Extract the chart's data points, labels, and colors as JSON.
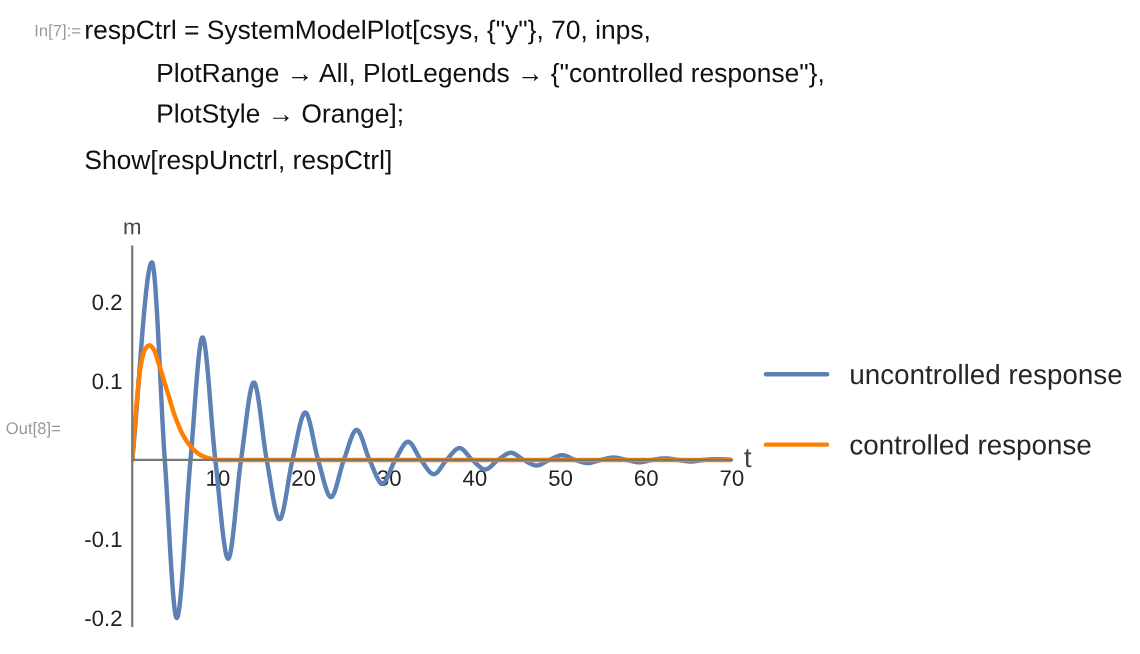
{
  "chart_data": {
    "type": "line",
    "xlabel": "t",
    "ylabel": "m",
    "annotations": [
      "In[7]:=",
      "respCtrl = SystemModelPlot[csys, {\"y\"}, 70, inps,",
      "PlotRange → All, PlotLegends → {\"controlled response\"},",
      "PlotStyle → Orange];",
      "Show[respUnctrl, respCtrl]",
      "Out[8]="
    ],
    "series": [
      {
        "name": "uncontrolled response",
        "color": "#5e81b5",
        "x": [
          0,
          2.3,
          3.8,
          5.2,
          6.8,
          8.2,
          9.7,
          11.2,
          12.7,
          14.2,
          15.7,
          17.2,
          18.7,
          20.2,
          21.7,
          23.2,
          24.7,
          26.2,
          27.7,
          29.2,
          30.7,
          32.2,
          33.7,
          35.2,
          36.7,
          38.2,
          39.7,
          41.2,
          42.7,
          44.2,
          45.7,
          47.2,
          48.7,
          50.2,
          51.7,
          53.2,
          54.7,
          56.2,
          57.7,
          59.2,
          60.7,
          62.2,
          63.7,
          65.2,
          66.7,
          68.2,
          70
        ],
        "values": [
          0,
          0.25,
          0,
          -0.2,
          0,
          0.155,
          0,
          -0.125,
          0,
          0.098,
          0,
          -0.075,
          0,
          0.06,
          0,
          -0.047,
          0,
          0.038,
          0,
          -0.03,
          0,
          0.023,
          0,
          -0.018,
          0,
          0.015,
          0,
          -0.012,
          0,
          0.009,
          0,
          -0.007,
          0,
          0.006,
          0,
          -0.004,
          0,
          0.003,
          0,
          -0.003,
          0,
          0.002,
          0,
          -0.002,
          0,
          0.001,
          0
        ]
      },
      {
        "name": "controlled response",
        "color": "#ff8000",
        "x": [
          0,
          0.5,
          1,
          1.5,
          2,
          2.5,
          3,
          4,
          5,
          6,
          7,
          8,
          9,
          10,
          70
        ],
        "values": [
          0,
          0.07,
          0.12,
          0.14,
          0.145,
          0.14,
          0.125,
          0.09,
          0.055,
          0.03,
          0.015,
          0.006,
          0.002,
          0,
          0
        ]
      }
    ],
    "xlim": [
      0,
      70
    ],
    "ylim": [
      -0.21,
      0.27
    ],
    "xticks": [
      10,
      20,
      30,
      40,
      50,
      60,
      70
    ],
    "yticks": [
      -0.2,
      -0.1,
      0.1,
      0.2
    ],
    "grid": false,
    "legend": "right",
    "marker": "none",
    "line_style": "solid"
  }
}
